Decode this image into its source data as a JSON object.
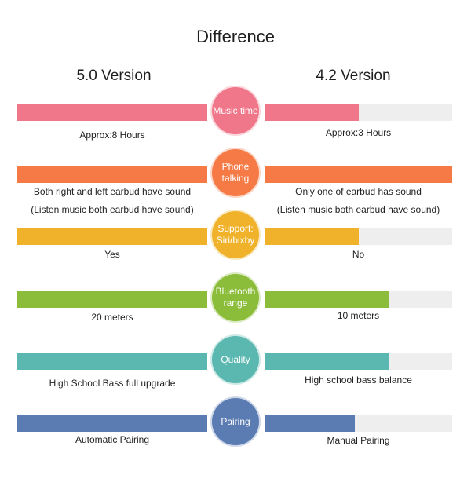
{
  "title": "Difference",
  "columns": {
    "left": "5.0 Version",
    "right": "4.2 Version"
  },
  "rows": [
    {
      "label": "Music time",
      "color": "#f0768a",
      "left_fill": 1.0,
      "right_fill": 0.5,
      "left_text": "Approx:8 Hours",
      "right_text": "Approx:3 Hours"
    },
    {
      "label": "Phone\ntalking",
      "color": "#f57a46",
      "left_fill": 1.0,
      "right_fill": 1.0,
      "left_text": "Both right and left earbud have sound\n(Listen music both earbud have sound)",
      "right_text": "Only one of earbud has sound\n(Listen music both earbud have sound)"
    },
    {
      "label": "Support:\nSiri/bixby",
      "color": "#efb22a",
      "left_fill": 1.0,
      "right_fill": 0.5,
      "left_text": "Yes",
      "right_text": "No"
    },
    {
      "label": "Bluetooth\nrange",
      "color": "#8bbd3a",
      "left_fill": 1.0,
      "right_fill": 0.66,
      "left_text": "20 meters",
      "right_text": "10 meters"
    },
    {
      "label": "Quality",
      "color": "#5bb8b0",
      "left_fill": 1.0,
      "right_fill": 0.66,
      "left_text": "High School Bass full upgrade",
      "right_text": "High school bass balance"
    },
    {
      "label": "Pairing",
      "color": "#5b7cb2",
      "left_fill": 1.0,
      "right_fill": 0.48,
      "left_text": "Automatic Pairing",
      "right_text": "Manual Pairing"
    }
  ]
}
